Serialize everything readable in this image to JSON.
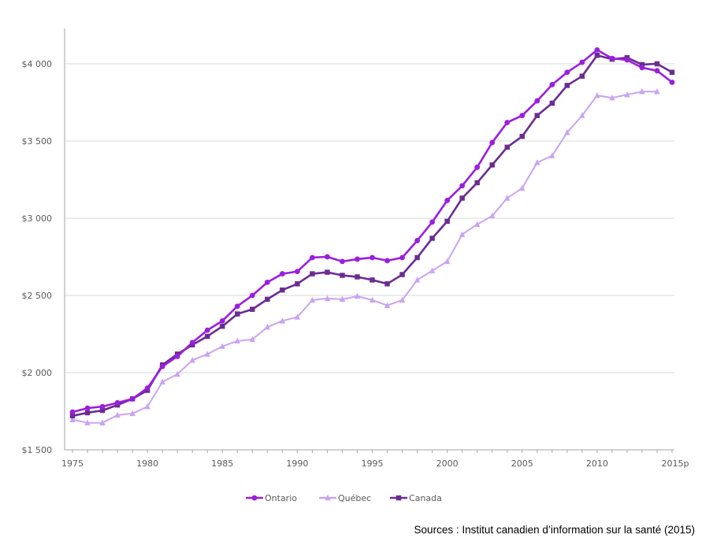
{
  "chart_data": {
    "type": "line",
    "title": "",
    "xlabel": "",
    "ylabel": "",
    "ylim": [
      1500,
      4200
    ],
    "xlim": [
      1975,
      2015
    ],
    "y_ticks": [
      1500,
      2000,
      2500,
      3000,
      3500,
      4000
    ],
    "y_tick_labels": [
      "$1 500",
      "$2 000",
      "$2 500",
      "$3 000",
      "$3 500",
      "$4 000"
    ],
    "x_ticks": [
      1975,
      1980,
      1985,
      1990,
      1995,
      2000,
      2005,
      2010,
      2015
    ],
    "x_tick_labels": [
      "1975",
      "1980",
      "1985",
      "1990",
      "1995",
      "2000",
      "2005",
      "2010",
      "2015p"
    ],
    "grid": true,
    "legend_position": "bottom",
    "source": "Sources : Institut canadien d’information sur la santé (2015)",
    "series": [
      {
        "name": "Ontario",
        "color": "#9b1ee0",
        "marker": "circle",
        "x": [
          1975,
          1976,
          1977,
          1978,
          1979,
          1980,
          1981,
          1982,
          1983,
          1984,
          1985,
          1986,
          1987,
          1988,
          1989,
          1990,
          1991,
          1992,
          1993,
          1994,
          1995,
          1996,
          1997,
          1998,
          1999,
          2000,
          2001,
          2002,
          2003,
          2004,
          2005,
          2006,
          2007,
          2008,
          2009,
          2010,
          2011,
          2012,
          2013,
          2014,
          2015
        ],
        "values": [
          1745,
          1770,
          1780,
          1805,
          1830,
          1900,
          2040,
          2105,
          2195,
          2275,
          2335,
          2430,
          2500,
          2585,
          2640,
          2655,
          2745,
          2750,
          2720,
          2735,
          2745,
          2725,
          2745,
          2855,
          2975,
          3115,
          3210,
          3330,
          3490,
          3620,
          3665,
          3760,
          3865,
          3945,
          4010,
          4090,
          4035,
          4025,
          3975,
          3955,
          3880
        ]
      },
      {
        "name": "Québec",
        "color": "#c9a4f2",
        "marker": "triangle",
        "x": [
          1975,
          1976,
          1977,
          1978,
          1979,
          1980,
          1981,
          1982,
          1983,
          1984,
          1985,
          1986,
          1987,
          1988,
          1989,
          1990,
          1991,
          1992,
          1993,
          1994,
          1995,
          1996,
          1997,
          1998,
          1999,
          2000,
          2001,
          2002,
          2003,
          2004,
          2005,
          2006,
          2007,
          2008,
          2009,
          2010,
          2011,
          2012,
          2013,
          2014
        ],
        "values": [
          1695,
          1675,
          1675,
          1725,
          1735,
          1780,
          1940,
          1990,
          2080,
          2120,
          2170,
          2205,
          2215,
          2295,
          2335,
          2360,
          2470,
          2480,
          2475,
          2495,
          2470,
          2435,
          2470,
          2600,
          2660,
          2720,
          2895,
          2960,
          3015,
          3130,
          3195,
          3360,
          3405,
          3555,
          3665,
          3795,
          3780,
          3800,
          3820,
          3820
        ]
      },
      {
        "name": "Canada",
        "color": "#6a2c91",
        "marker": "square",
        "x": [
          1975,
          1976,
          1977,
          1978,
          1979,
          1980,
          1981,
          1982,
          1983,
          1984,
          1985,
          1986,
          1987,
          1988,
          1989,
          1990,
          1991,
          1992,
          1993,
          1994,
          1995,
          1996,
          1997,
          1998,
          1999,
          2000,
          2001,
          2002,
          2003,
          2004,
          2005,
          2006,
          2007,
          2008,
          2009,
          2010,
          2011,
          2012,
          2013,
          2014,
          2015
        ],
        "values": [
          1720,
          1740,
          1755,
          1790,
          1830,
          1885,
          2050,
          2120,
          2180,
          2235,
          2300,
          2380,
          2410,
          2475,
          2535,
          2575,
          2640,
          2650,
          2630,
          2620,
          2600,
          2575,
          2635,
          2745,
          2870,
          2980,
          3130,
          3230,
          3345,
          3460,
          3530,
          3665,
          3745,
          3860,
          3920,
          4055,
          4030,
          4040,
          3995,
          4000,
          3945
        ]
      }
    ]
  }
}
